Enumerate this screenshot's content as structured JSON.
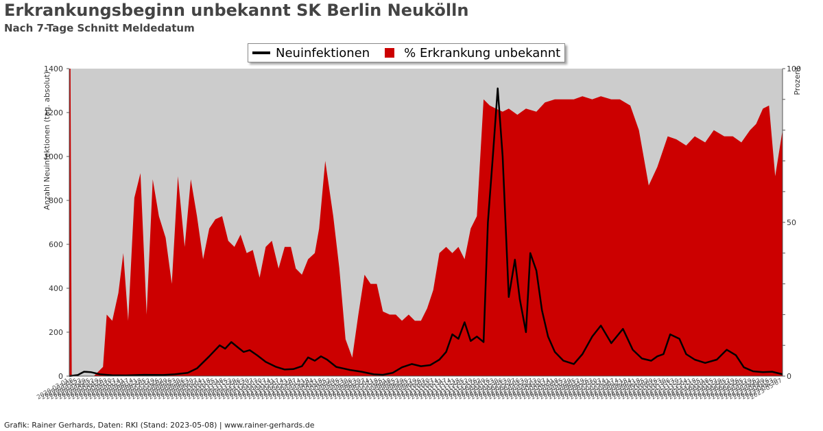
{
  "header": {
    "title": "Erkrankungsbeginn unbekannt SK Berlin Neukölln",
    "subtitle": "Nach 7-Tage Schnitt Meldedatum"
  },
  "legend": {
    "line_label": "Neuinfektionen",
    "area_label": "% Erkrankung unbekannt"
  },
  "footer": "Grafik: Rainer Gerhards, Daten: RKI (Stand: 2023-05-08) | www.rainer-gerhards.de",
  "colors": {
    "area": "#cc0000",
    "line": "#000000",
    "plot_background": "#cccccc"
  },
  "chart_data": {
    "type": "area",
    "x_range": [
      "2020-03-01",
      "2023-05-07"
    ],
    "x_tick_labels": "dates, rotated and overlapping (illegible)",
    "y_left": {
      "label": "Anzahl Neuinfektionen (tag. absolut)",
      "ticks": [
        0,
        200,
        400,
        600,
        800,
        1000,
        1200,
        1400
      ],
      "lim": [
        0,
        1400
      ]
    },
    "y_right": {
      "label": "Prozent",
      "ticks": [
        0,
        50,
        100
      ],
      "lim": [
        0,
        100
      ]
    },
    "grid": false,
    "legend_position": "top-center",
    "series": [
      {
        "name": "Neuinfektionen",
        "type": "line",
        "axis": "left",
        "x": [
          "2020-03-01",
          "2020-03-15",
          "2020-03-25",
          "2020-04-05",
          "2020-04-20",
          "2020-05-10",
          "2020-06-01",
          "2020-07-01",
          "2020-08-01",
          "2020-08-20",
          "2020-09-10",
          "2020-09-25",
          "2020-10-15",
          "2020-11-01",
          "2020-11-10",
          "2020-11-20",
          "2020-12-01",
          "2020-12-10",
          "2020-12-20",
          "2021-01-01",
          "2021-01-15",
          "2021-02-01",
          "2021-02-15",
          "2021-03-01",
          "2021-03-15",
          "2021-03-25",
          "2021-04-05",
          "2021-04-15",
          "2021-04-25",
          "2021-05-10",
          "2021-06-01",
          "2021-06-20",
          "2021-07-10",
          "2021-07-25",
          "2021-08-10",
          "2021-08-25",
          "2021-09-10",
          "2021-09-25",
          "2021-10-10",
          "2021-10-25",
          "2021-11-05",
          "2021-11-15",
          "2021-11-25",
          "2021-12-05",
          "2021-12-15",
          "2021-12-25",
          "2022-01-05",
          "2022-01-12",
          "2022-01-20",
          "2022-01-28",
          "2022-02-05",
          "2022-02-15",
          "2022-02-25",
          "2022-03-05",
          "2022-03-15",
          "2022-03-22",
          "2022-04-01",
          "2022-04-10",
          "2022-04-20",
          "2022-05-01",
          "2022-05-15",
          "2022-06-01",
          "2022-06-15",
          "2022-07-01",
          "2022-07-15",
          "2022-08-01",
          "2022-08-20",
          "2022-09-05",
          "2022-09-20",
          "2022-10-05",
          "2022-10-15",
          "2022-10-25",
          "2022-11-05",
          "2022-11-20",
          "2022-12-01",
          "2022-12-15",
          "2023-01-01",
          "2023-01-20",
          "2023-02-05",
          "2023-02-20",
          "2023-03-05",
          "2023-03-20",
          "2023-04-05",
          "2023-04-20",
          "2023-05-07"
        ],
        "values": [
          0,
          5,
          20,
          18,
          8,
          4,
          3,
          6,
          5,
          8,
          15,
          35,
          90,
          140,
          125,
          155,
          130,
          110,
          118,
          95,
          65,
          42,
          30,
          32,
          45,
          85,
          70,
          90,
          75,
          42,
          28,
          20,
          8,
          6,
          15,
          40,
          55,
          45,
          50,
          75,
          110,
          190,
          170,
          245,
          160,
          180,
          155,
          700,
          1000,
          1310,
          1000,
          360,
          530,
          350,
          200,
          560,
          480,
          300,
          180,
          110,
          70,
          55,
          100,
          180,
          230,
          150,
          215,
          120,
          80,
          70,
          90,
          100,
          190,
          170,
          100,
          75,
          60,
          75,
          120,
          95,
          40,
          22,
          18,
          20,
          8
        ]
      },
      {
        "name": "% Erkrankung unbekannt",
        "type": "area",
        "axis": "right",
        "x": [
          "2020-03-01",
          "2020-03-03",
          "2020-03-05",
          "2020-04-10",
          "2020-04-20",
          "2020-04-25",
          "2020-05-01",
          "2020-05-10",
          "2020-05-20",
          "2020-05-28",
          "2020-06-05",
          "2020-06-15",
          "2020-06-25",
          "2020-07-05",
          "2020-07-15",
          "2020-07-25",
          "2020-08-05",
          "2020-08-15",
          "2020-08-25",
          "2020-09-05",
          "2020-09-15",
          "2020-09-25",
          "2020-10-05",
          "2020-10-15",
          "2020-10-25",
          "2020-11-05",
          "2020-11-15",
          "2020-11-25",
          "2020-12-05",
          "2020-12-15",
          "2020-12-25",
          "2021-01-05",
          "2021-01-15",
          "2021-01-25",
          "2021-02-05",
          "2021-02-15",
          "2021-02-25",
          "2021-03-05",
          "2021-03-15",
          "2021-03-25",
          "2021-04-05",
          "2021-04-12",
          "2021-04-22",
          "2021-05-05",
          "2021-05-15",
          "2021-05-25",
          "2021-06-05",
          "2021-06-15",
          "2021-06-25",
          "2021-07-05",
          "2021-07-15",
          "2021-07-25",
          "2021-08-05",
          "2021-08-15",
          "2021-08-25",
          "2021-09-05",
          "2021-09-15",
          "2021-09-25",
          "2021-10-05",
          "2021-10-15",
          "2021-10-25",
          "2021-11-05",
          "2021-11-15",
          "2021-11-25",
          "2021-12-05",
          "2021-12-15",
          "2021-12-25",
          "2022-01-05",
          "2022-01-15",
          "2022-01-25",
          "2022-02-05",
          "2022-02-15",
          "2022-03-01",
          "2022-03-15",
          "2022-04-01",
          "2022-04-15",
          "2022-05-01",
          "2022-05-15",
          "2022-06-01",
          "2022-06-15",
          "2022-07-01",
          "2022-07-15",
          "2022-08-01",
          "2022-08-15",
          "2022-09-01",
          "2022-09-15",
          "2022-10-01",
          "2022-10-15",
          "2022-11-01",
          "2022-11-15",
          "2022-12-01",
          "2022-12-15",
          "2023-01-01",
          "2023-01-15",
          "2023-02-01",
          "2023-02-15",
          "2023-03-01",
          "2023-03-15",
          "2023-03-25",
          "2023-04-05",
          "2023-04-15",
          "2023-04-25",
          "2023-05-07"
        ],
        "values": [
          100,
          100,
          0,
          0,
          2,
          3,
          20,
          18,
          27,
          40,
          18,
          58,
          66,
          20,
          64,
          52,
          45,
          30,
          65,
          42,
          64,
          52,
          38,
          48,
          51,
          52,
          44,
          42,
          46,
          40,
          41,
          32,
          42,
          44,
          35,
          42,
          42,
          35,
          33,
          38,
          40,
          48,
          70,
          52,
          35,
          12,
          6,
          20,
          33,
          30,
          30,
          21,
          20,
          20,
          18,
          20,
          18,
          18,
          22,
          28,
          40,
          42,
          40,
          42,
          38,
          48,
          52,
          90,
          88,
          87,
          86,
          87,
          85,
          87,
          86,
          89,
          90,
          90,
          90,
          91,
          90,
          91,
          90,
          90,
          88,
          80,
          62,
          68,
          78,
          77,
          75,
          78,
          76,
          80,
          78,
          78,
          76,
          80,
          82,
          87,
          88,
          65,
          80
        ]
      }
    ]
  }
}
